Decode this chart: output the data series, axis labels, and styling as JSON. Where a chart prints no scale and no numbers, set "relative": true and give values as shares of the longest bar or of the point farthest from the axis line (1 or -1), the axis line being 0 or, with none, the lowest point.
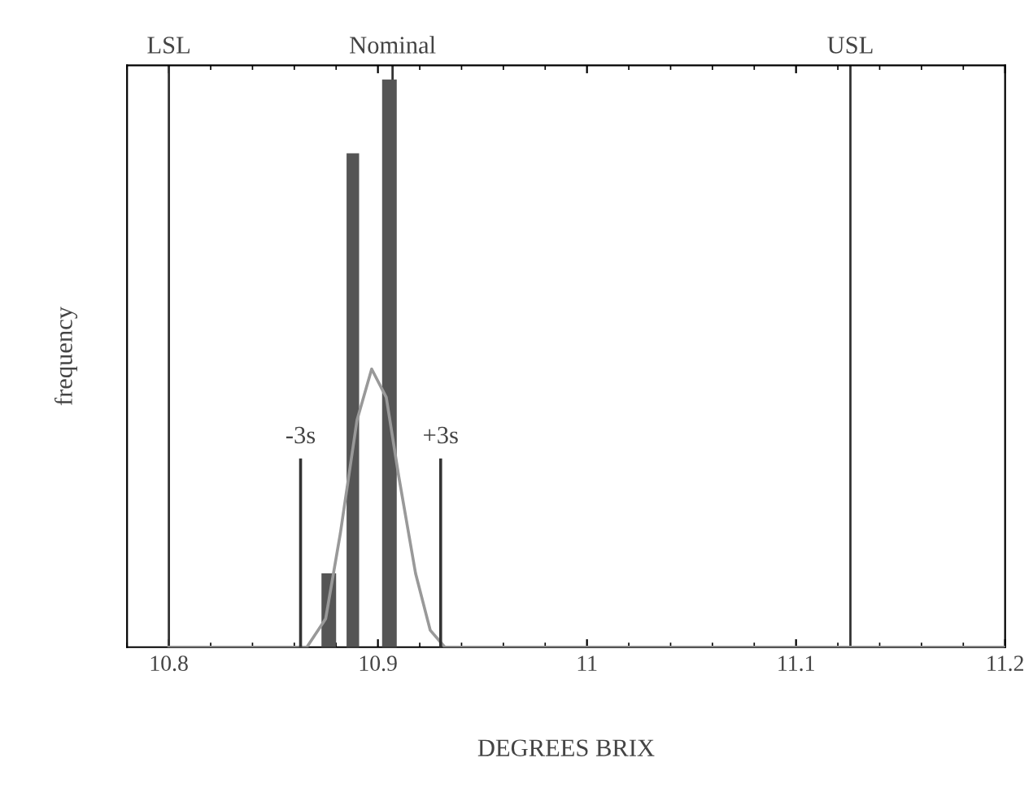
{
  "chart_data": {
    "type": "histogram",
    "relative": true,
    "xlabel": "DEGREES BRIX",
    "ylabel": "frequency",
    "xlim": [
      10.78,
      11.2
    ],
    "xticks": [
      10.8,
      10.9,
      11,
      11.1,
      11.2
    ],
    "bins": [
      10.873,
      10.88,
      10.885,
      10.891,
      10.902,
      10.909
    ],
    "values": [
      0.13,
      0,
      0.87,
      0,
      1
    ],
    "color": "#555555",
    "series": [
      {
        "type": "line",
        "color": "#999999",
        "x": [
          10.8,
          10.866,
          10.875,
          10.882,
          10.89,
          10.897,
          10.904,
          10.91,
          10.918,
          10.925,
          10.932,
          11.2
        ],
        "values": [
          0,
          0,
          0.05,
          0.2,
          0.4,
          0.49,
          0.44,
          0.3,
          0.13,
          0.03,
          0,
          0
        ]
      },
      {
        "type": "line",
        "name": "-3s",
        "color": "#333333",
        "x": [
          10.863,
          10.863
        ],
        "values": [
          0,
          0.33
        ]
      },
      {
        "type": "line",
        "name": "+3s",
        "color": "#333333",
        "x": [
          10.93,
          10.93
        ],
        "values": [
          0,
          0.33
        ]
      }
    ],
    "ref_lines": [
      {
        "axis": "x",
        "value": 10.8,
        "label": "LSL",
        "color": "#333333"
      },
      {
        "axis": "x",
        "value": 10.907,
        "label": "Nominal",
        "color": "#333333"
      },
      {
        "axis": "x",
        "value": 11.126,
        "label": "USL",
        "color": "#333333"
      }
    ],
    "grid": false
  }
}
